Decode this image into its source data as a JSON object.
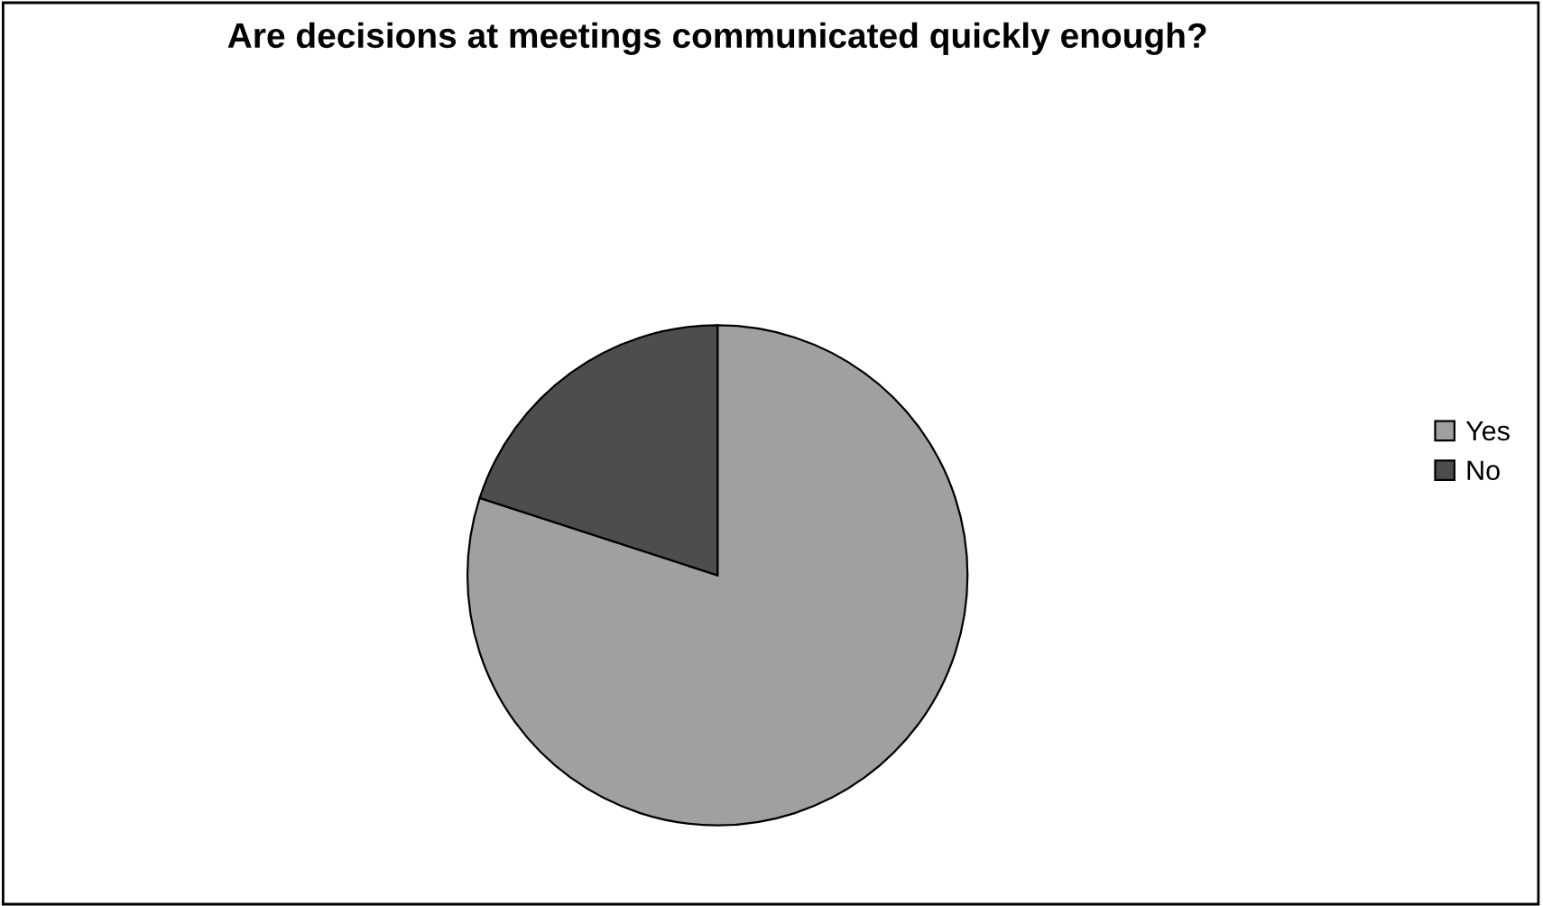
{
  "chart_data": {
    "type": "pie",
    "title": "Are decisions at meetings communicated quickly enough?",
    "categories": [
      "Yes",
      "No"
    ],
    "values": [
      80,
      20
    ],
    "colors": [
      "#a0a0a0",
      "#4d4d4d"
    ],
    "legend": "right"
  }
}
